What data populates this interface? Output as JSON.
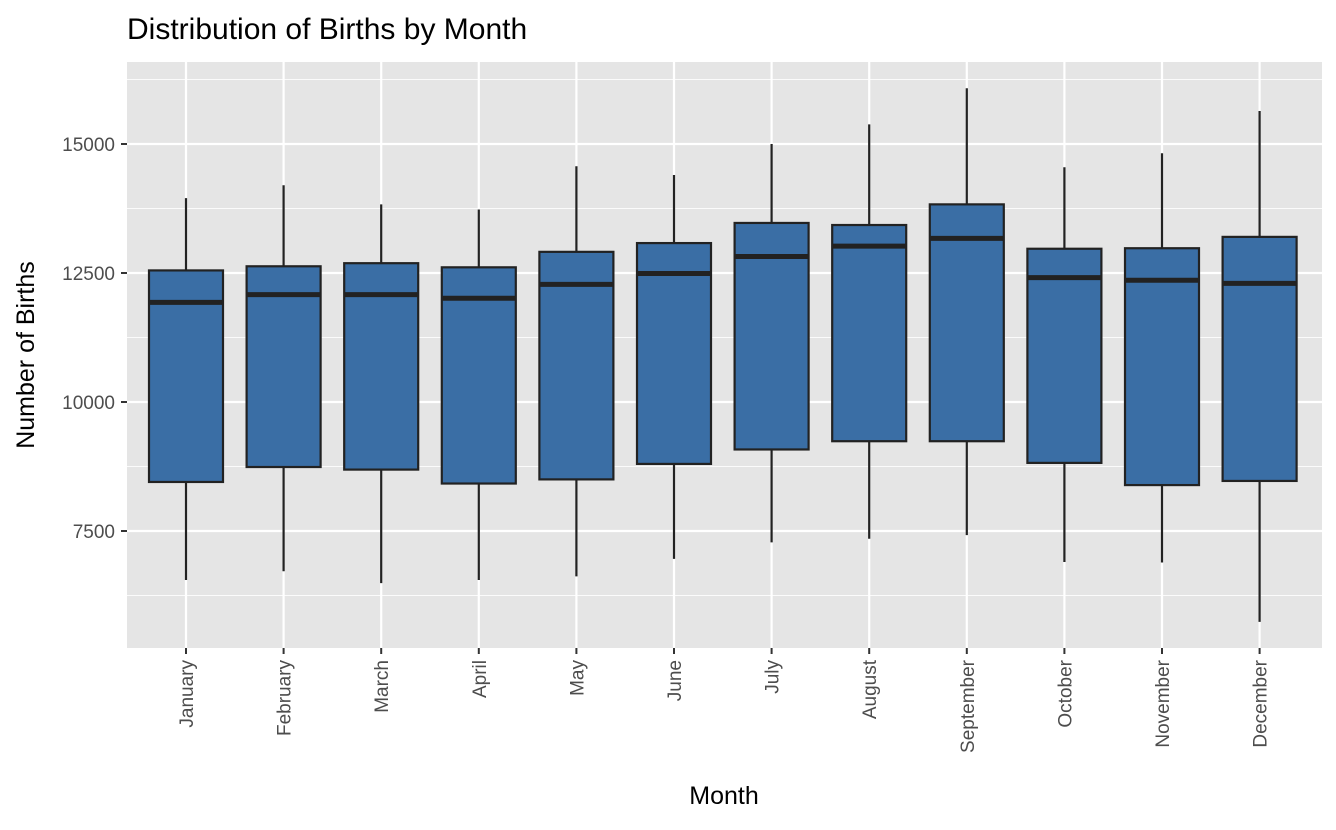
{
  "chart_data": {
    "type": "boxplot",
    "title": "Distribution of Births by Month",
    "xlabel": "Month",
    "ylabel": "Number of Births",
    "ylim": [
      5000,
      16500
    ],
    "y_ticks": [
      7500,
      10000,
      12500,
      15000
    ],
    "y_tick_labels": [
      "7500",
      "10000",
      "12500",
      "15000"
    ],
    "grid": true,
    "legend": "none",
    "colors": {
      "panel_bg": "#e5e5e5",
      "grid": "#ffffff",
      "box_fill": "#3a6ea5",
      "box_stroke": "#222222",
      "median": "#222222",
      "text": "#000000",
      "tick_text": "#4d4d4d"
    },
    "categories": [
      "January",
      "February",
      "March",
      "April",
      "May",
      "June",
      "July",
      "August",
      "September",
      "October",
      "November",
      "December"
    ],
    "boxes": [
      {
        "month": "January",
        "min": 6550,
        "q1": 8450,
        "median": 11930,
        "q3": 12550,
        "max": 13950
      },
      {
        "month": "February",
        "min": 6720,
        "q1": 8740,
        "median": 12080,
        "q3": 12630,
        "max": 14200
      },
      {
        "month": "March",
        "min": 6490,
        "q1": 8690,
        "median": 12080,
        "q3": 12690,
        "max": 13830
      },
      {
        "month": "April",
        "min": 6550,
        "q1": 8420,
        "median": 12010,
        "q3": 12610,
        "max": 13730
      },
      {
        "month": "May",
        "min": 6620,
        "q1": 8500,
        "median": 12280,
        "q3": 12910,
        "max": 14570
      },
      {
        "month": "June",
        "min": 6960,
        "q1": 8800,
        "median": 12490,
        "q3": 13080,
        "max": 14400
      },
      {
        "month": "July",
        "min": 7280,
        "q1": 9080,
        "median": 12820,
        "q3": 13470,
        "max": 15000
      },
      {
        "month": "August",
        "min": 7350,
        "q1": 9240,
        "median": 13020,
        "q3": 13430,
        "max": 15380
      },
      {
        "month": "September",
        "min": 7420,
        "q1": 9240,
        "median": 13170,
        "q3": 13830,
        "max": 16080
      },
      {
        "month": "October",
        "min": 6900,
        "q1": 8820,
        "median": 12410,
        "q3": 12970,
        "max": 14550
      },
      {
        "month": "November",
        "min": 6890,
        "q1": 8390,
        "median": 12360,
        "q3": 12980,
        "max": 14820
      },
      {
        "month": "December",
        "min": 5740,
        "q1": 8470,
        "median": 12300,
        "q3": 13200,
        "max": 15640
      }
    ]
  }
}
